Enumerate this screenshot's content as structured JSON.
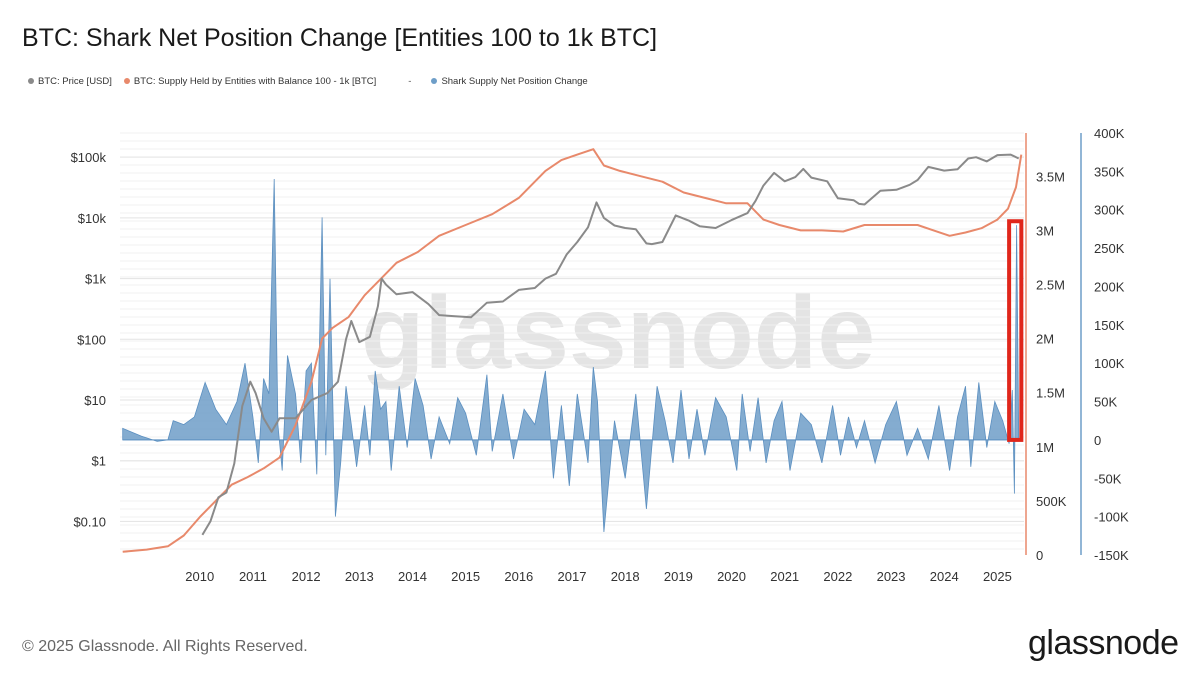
{
  "page": {
    "title": "BTC: Shark Net Position Change [Entities 100 to 1k BTC]",
    "footer": "© 2025 Glassnode. All Rights Reserved.",
    "brand": "glassnode",
    "watermark": "glassnode"
  },
  "chart_data": {
    "type": "line",
    "title": "BTC: Shark Net Position Change [Entities 100 to 1k BTC]",
    "legend_placement": "top-left",
    "grid": true,
    "legend": [
      {
        "label": "BTC: Price [USD]",
        "color": "#8a8a8a"
      },
      {
        "label": "BTC: Supply Held by Entities with Balance 100 - 1k [BTC]",
        "color": "#e8896b"
      },
      {
        "label": "-",
        "color": "#555555"
      },
      {
        "label": "Shark Supply Net Position Change",
        "color": "#6e9ec8"
      }
    ],
    "x_ticks": [
      "2010",
      "2011",
      "2012",
      "2013",
      "2014",
      "2015",
      "2016",
      "2017",
      "2018",
      "2019",
      "2020",
      "2021",
      "2022",
      "2023",
      "2024",
      "2025"
    ],
    "xlim": [
      2009.0,
      2026.0
    ],
    "left_axis": {
      "scale": "log",
      "ticks": [
        "$0.10",
        "$1",
        "$10",
        "$100",
        "$1k",
        "$10k",
        "$100k"
      ],
      "values": [
        0.1,
        1,
        10,
        100,
        1000,
        10000,
        100000
      ],
      "range": [
        0.028,
        250000
      ]
    },
    "mid_axis": {
      "ticks": [
        "0",
        "500K",
        "1M",
        "1.5M",
        "2M",
        "2.5M",
        "3M",
        "3.5M"
      ],
      "values": [
        0,
        500000,
        1000000,
        1500000,
        2000000,
        2500000,
        3000000,
        3500000
      ],
      "range": [
        0,
        3900000
      ]
    },
    "right_axis": {
      "ticks": [
        "-150K",
        "-100K",
        "-50K",
        "0",
        "50K",
        "100K",
        "150K",
        "200K",
        "250K",
        "300K",
        "350K",
        "400K"
      ],
      "values": [
        -150000,
        -100000,
        -50000,
        0,
        50000,
        100000,
        150000,
        200000,
        250000,
        300000,
        350000,
        400000
      ],
      "range": [
        -150000,
        400000
      ]
    },
    "series": [
      {
        "name": "BTC: Price [USD]",
        "axis": "left",
        "color": "#8a8a8a",
        "x": [
          2010.55,
          2010.7,
          2010.85,
          2011.0,
          2011.15,
          2011.3,
          2011.45,
          2011.55,
          2011.7,
          2011.85,
          2012.0,
          2012.3,
          2012.6,
          2012.9,
          2013.1,
          2013.25,
          2013.35,
          2013.5,
          2013.7,
          2013.85,
          2013.92,
          2014.0,
          2014.2,
          2014.5,
          2014.8,
          2015.0,
          2015.3,
          2015.6,
          2015.9,
          2016.2,
          2016.5,
          2016.8,
          2017.0,
          2017.2,
          2017.4,
          2017.6,
          2017.8,
          2017.96,
          2018.1,
          2018.3,
          2018.5,
          2018.7,
          2018.9,
          2019.0,
          2019.2,
          2019.45,
          2019.7,
          2019.9,
          2020.2,
          2020.5,
          2020.8,
          2020.95,
          2021.1,
          2021.3,
          2021.5,
          2021.7,
          2021.85,
          2022.0,
          2022.3,
          2022.5,
          2022.8,
          2022.9,
          2023.0,
          2023.3,
          2023.6,
          2023.85,
          2024.0,
          2024.2,
          2024.5,
          2024.75,
          2024.95,
          2025.1,
          2025.3,
          2025.5,
          2025.75,
          2025.9
        ],
        "values": [
          0.06,
          0.1,
          0.25,
          0.3,
          0.9,
          8,
          20,
          13,
          5,
          3,
          5,
          5,
          10,
          13,
          20,
          100,
          200,
          90,
          110,
          350,
          1000,
          800,
          550,
          600,
          380,
          250,
          240,
          230,
          400,
          420,
          650,
          700,
          1000,
          1200,
          2500,
          4000,
          7000,
          18000,
          10000,
          7500,
          6800,
          6500,
          3800,
          3700,
          4000,
          11000,
          9000,
          7300,
          6800,
          9200,
          12000,
          19000,
          34000,
          55000,
          40000,
          47000,
          64000,
          46000,
          40000,
          21000,
          19500,
          17000,
          16600,
          28000,
          29000,
          35000,
          42000,
          69000,
          60000,
          63000,
          95000,
          100000,
          85000,
          108000,
          110000,
          95000
        ],
        "unit": "USD"
      },
      {
        "name": "BTC: Supply Held by Entities with Balance 100 - 1k [BTC]",
        "axis": "mid",
        "color": "#e8896b",
        "x": [
          2009.05,
          2009.5,
          2009.9,
          2010.2,
          2010.5,
          2010.7,
          2010.9,
          2011.1,
          2011.4,
          2011.7,
          2012.0,
          2012.3,
          2012.6,
          2012.8,
          2013.0,
          2013.3,
          2013.6,
          2013.9,
          2014.2,
          2014.6,
          2015.0,
          2015.5,
          2016.0,
          2016.5,
          2017.0,
          2017.3,
          2017.6,
          2017.9,
          2018.1,
          2018.4,
          2018.8,
          2019.2,
          2019.6,
          2020.0,
          2020.4,
          2020.8,
          2021.1,
          2021.4,
          2021.8,
          2022.2,
          2022.6,
          2023.0,
          2023.5,
          2024.0,
          2024.3,
          2024.6,
          2024.9,
          2025.2,
          2025.5,
          2025.7,
          2025.85,
          2025.95
        ],
        "values": [
          30000,
          50000,
          80000,
          180000,
          350000,
          450000,
          550000,
          650000,
          720000,
          800000,
          900000,
          1200000,
          1600000,
          2000000,
          2100000,
          2200000,
          2400000,
          2550000,
          2700000,
          2800000,
          2950000,
          3050000,
          3150000,
          3300000,
          3550000,
          3650000,
          3700000,
          3750000,
          3600000,
          3550000,
          3500000,
          3450000,
          3350000,
          3300000,
          3250000,
          3250000,
          3100000,
          3050000,
          3000000,
          3000000,
          2990000,
          3050000,
          3050000,
          3050000,
          3000000,
          2950000,
          2980000,
          3020000,
          3100000,
          3200000,
          3400000,
          3700000
        ],
        "unit": "BTC"
      },
      {
        "name": "Shark Supply Net Position Change",
        "axis": "right",
        "color": "#6e9ec8",
        "type": "area",
        "x": [
          2009.05,
          2009.4,
          2009.7,
          2009.9,
          2010.0,
          2010.2,
          2010.4,
          2010.6,
          2010.8,
          2011.0,
          2011.2,
          2011.35,
          2011.5,
          2011.6,
          2011.7,
          2011.8,
          2011.9,
          2011.97,
          2012.05,
          2012.15,
          2012.3,
          2012.4,
          2012.5,
          2012.6,
          2012.7,
          2012.8,
          2012.87,
          2012.95,
          2013.05,
          2013.15,
          2013.25,
          2013.35,
          2013.45,
          2013.6,
          2013.7,
          2013.8,
          2013.9,
          2014.0,
          2014.1,
          2014.25,
          2014.4,
          2014.55,
          2014.7,
          2014.85,
          2015.0,
          2015.2,
          2015.35,
          2015.5,
          2015.7,
          2015.9,
          2016.0,
          2016.2,
          2016.4,
          2016.6,
          2016.8,
          2017.0,
          2017.15,
          2017.3,
          2017.45,
          2017.6,
          2017.8,
          2017.9,
          2017.98,
          2018.1,
          2018.3,
          2018.5,
          2018.7,
          2018.9,
          2019.1,
          2019.25,
          2019.4,
          2019.55,
          2019.7,
          2019.85,
          2020.0,
          2020.2,
          2020.4,
          2020.6,
          2020.7,
          2020.85,
          2021.0,
          2021.15,
          2021.3,
          2021.45,
          2021.6,
          2021.8,
          2022.0,
          2022.2,
          2022.4,
          2022.55,
          2022.7,
          2022.85,
          2023.0,
          2023.2,
          2023.4,
          2023.6,
          2023.8,
          2024.0,
          2024.2,
          2024.4,
          2024.6,
          2024.75,
          2024.9,
          2025.0,
          2025.15,
          2025.3,
          2025.45,
          2025.6,
          2025.72,
          2025.78,
          2025.82,
          2025.86,
          2025.9
        ],
        "values": [
          15000,
          5000,
          -2000,
          0,
          25000,
          20000,
          30000,
          75000,
          40000,
          20000,
          50000,
          100000,
          30000,
          -30000,
          80000,
          60000,
          340000,
          20000,
          -40000,
          110000,
          60000,
          -30000,
          90000,
          100000,
          -45000,
          290000,
          -20000,
          210000,
          -100000,
          -30000,
          70000,
          20000,
          -35000,
          45000,
          -20000,
          90000,
          40000,
          50000,
          -40000,
          70000,
          -10000,
          80000,
          45000,
          -25000,
          30000,
          -5000,
          55000,
          35000,
          -20000,
          85000,
          -15000,
          60000,
          -25000,
          40000,
          20000,
          90000,
          -50000,
          45000,
          -60000,
          60000,
          -30000,
          95000,
          50000,
          -120000,
          25000,
          -50000,
          60000,
          -90000,
          70000,
          25000,
          -30000,
          65000,
          -25000,
          40000,
          -20000,
          55000,
          30000,
          -40000,
          60000,
          -15000,
          55000,
          -30000,
          25000,
          50000,
          -40000,
          35000,
          20000,
          -30000,
          45000,
          -20000,
          30000,
          -10000,
          25000,
          -30000,
          20000,
          50000,
          -20000,
          15000,
          -25000,
          45000,
          -40000,
          30000,
          70000,
          -35000,
          75000,
          -10000,
          50000,
          25000,
          -5000,
          65000,
          -70000,
          280000,
          10000
        ]
      }
    ],
    "annotation": {
      "type": "highlight-box",
      "color": "#e0261b",
      "x_range": [
        2025.72,
        2025.95
      ],
      "y_range_right": [
        0,
        285000
      ]
    }
  }
}
